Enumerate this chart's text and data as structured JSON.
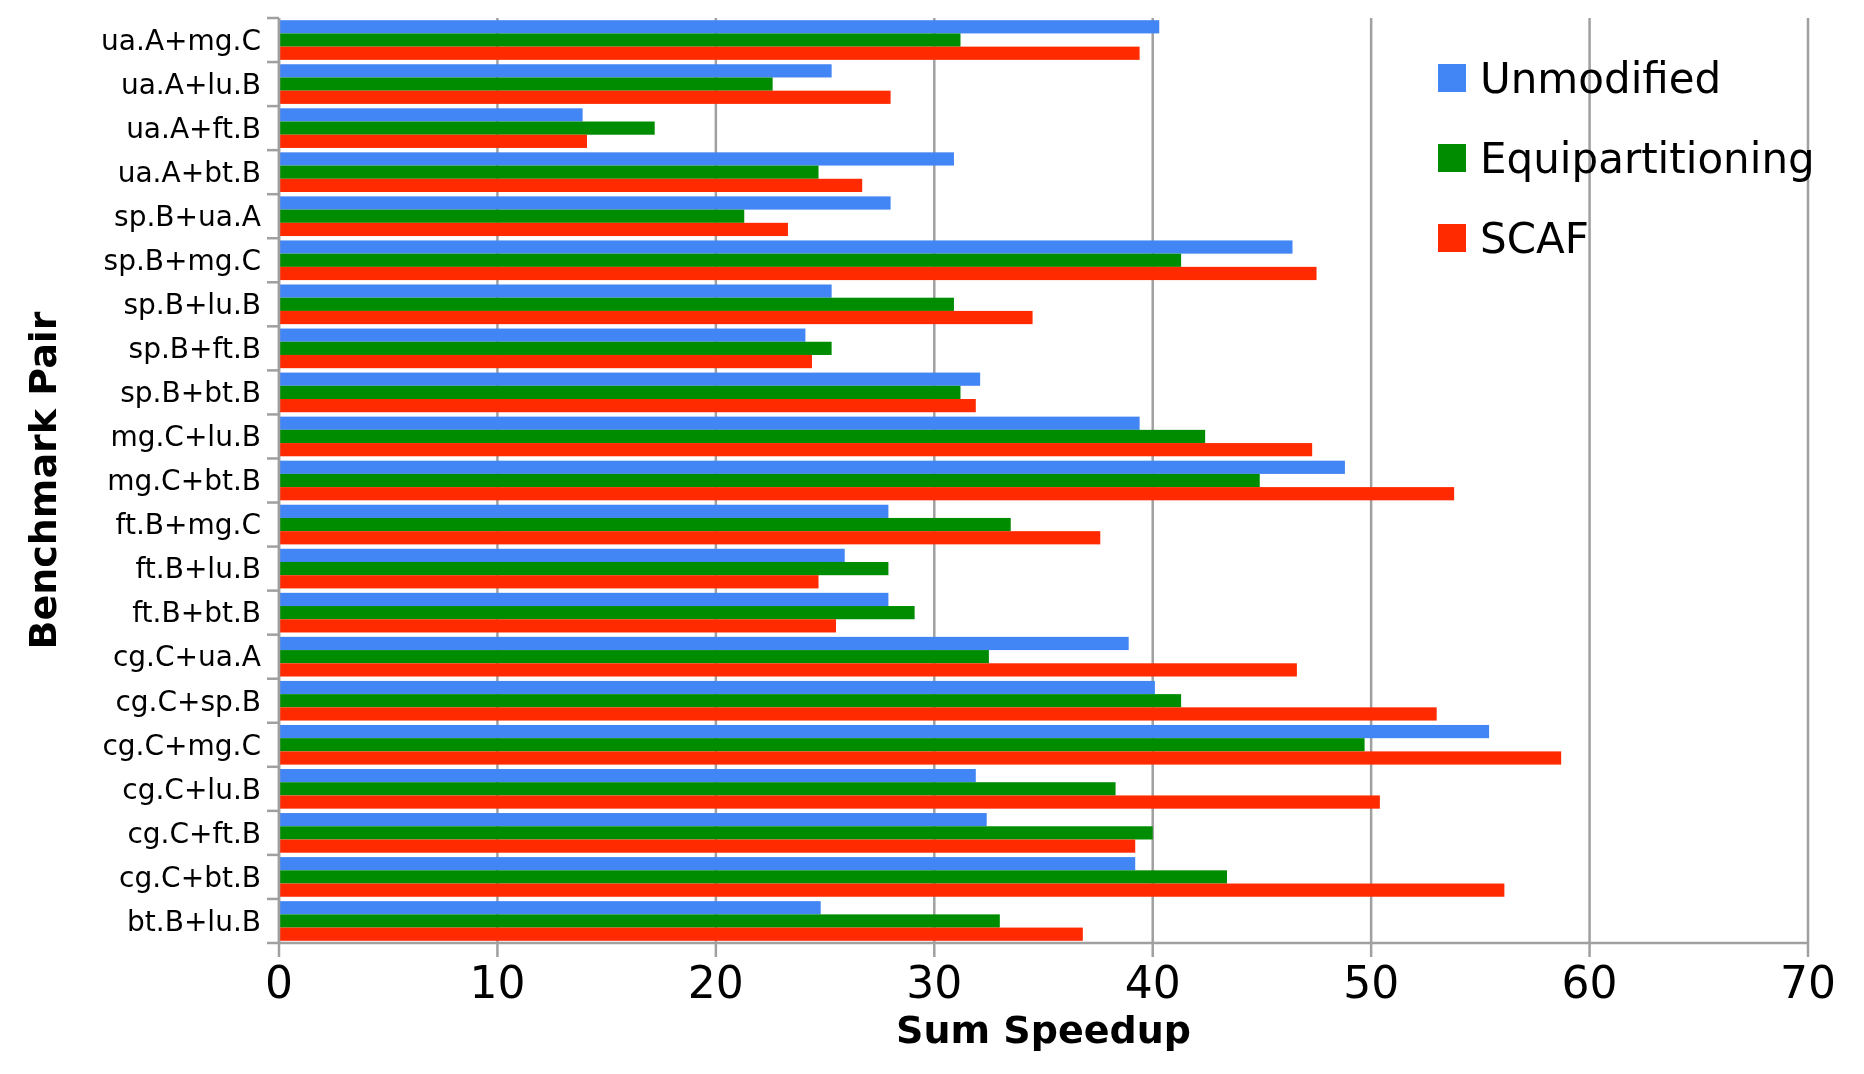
{
  "chart_data": {
    "type": "bar",
    "orientation": "horizontal",
    "xlabel": "Sum Speedup",
    "ylabel": "Benchmark Pair",
    "categories": [
      "ua.A+mg.C",
      "ua.A+lu.B",
      "ua.A+ft.B",
      "ua.A+bt.B",
      "sp.B+ua.A",
      "sp.B+mg.C",
      "sp.B+lu.B",
      "sp.B+ft.B",
      "sp.B+bt.B",
      "mg.C+lu.B",
      "mg.C+bt.B",
      "ft.B+mg.C",
      "ft.B+lu.B",
      "ft.B+bt.B",
      "cg.C+ua.A",
      "cg.C+sp.B",
      "cg.C+mg.C",
      "cg.C+lu.B",
      "cg.C+ft.B",
      "cg.C+bt.B",
      "bt.B+lu.B"
    ],
    "series": [
      {
        "name": "Unmodified",
        "color": "#4285f4",
        "values": [
          40.3,
          25.3,
          13.9,
          30.9,
          28.0,
          46.4,
          25.3,
          24.1,
          32.1,
          39.4,
          48.8,
          27.9,
          25.9,
          27.9,
          38.9,
          40.1,
          55.4,
          31.9,
          32.4,
          39.2,
          24.8
        ]
      },
      {
        "name": "Equipartitioning",
        "color": "#008c00",
        "values": [
          31.2,
          22.6,
          17.2,
          24.7,
          21.3,
          41.3,
          30.9,
          25.3,
          31.2,
          42.4,
          44.9,
          33.5,
          27.9,
          29.1,
          32.5,
          41.3,
          49.7,
          38.3,
          40.0,
          43.4,
          33.0
        ]
      },
      {
        "name": "SCAF",
        "color": "#ff2a00",
        "values": [
          39.4,
          28.0,
          14.1,
          26.7,
          23.3,
          47.5,
          34.5,
          24.4,
          31.9,
          47.3,
          53.8,
          37.6,
          24.7,
          25.5,
          46.6,
          53.0,
          58.7,
          50.4,
          39.2,
          56.1,
          36.8
        ]
      }
    ],
    "xlim": [
      0,
      70
    ],
    "xticks": [
      0,
      10,
      20,
      30,
      40,
      50,
      60,
      70
    ],
    "grid": "x",
    "legend": "top right"
  }
}
